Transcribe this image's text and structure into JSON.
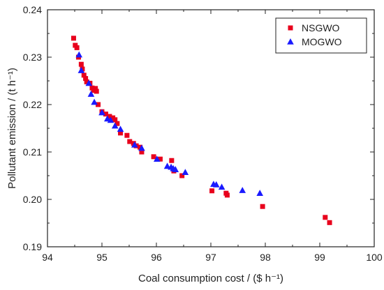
{
  "chart_data": {
    "type": "scatter",
    "xlabel": "Coal consumption cost / ($ h⁻¹)",
    "ylabel": "Pollutant emission / (t h⁻¹)",
    "xlim": [
      94,
      100
    ],
    "ylim": [
      0.19,
      0.24
    ],
    "x_ticks": [
      "94",
      "95",
      "96",
      "97",
      "98",
      "99",
      "100"
    ],
    "y_ticks": [
      "0.19",
      "0.20",
      "0.21",
      "0.22",
      "0.23",
      "0.24"
    ],
    "legend_position": "top-right",
    "series": [
      {
        "name": "NSGWO",
        "marker": "square",
        "color": "#e8001c",
        "points": [
          [
            94.48,
            0.234
          ],
          [
            94.51,
            0.2325
          ],
          [
            94.54,
            0.232
          ],
          [
            94.57,
            0.23
          ],
          [
            94.62,
            0.2285
          ],
          [
            94.64,
            0.2275
          ],
          [
            94.67,
            0.2262
          ],
          [
            94.7,
            0.2255
          ],
          [
            94.72,
            0.2248
          ],
          [
            94.78,
            0.2245
          ],
          [
            94.82,
            0.2235
          ],
          [
            94.85,
            0.223
          ],
          [
            94.88,
            0.2234
          ],
          [
            94.9,
            0.2228
          ],
          [
            94.93,
            0.22
          ],
          [
            95.0,
            0.2185
          ],
          [
            95.07,
            0.218
          ],
          [
            95.14,
            0.2175
          ],
          [
            95.2,
            0.2172
          ],
          [
            95.24,
            0.2168
          ],
          [
            95.28,
            0.216
          ],
          [
            95.34,
            0.214
          ],
          [
            95.46,
            0.2135
          ],
          [
            95.51,
            0.2122
          ],
          [
            95.58,
            0.2118
          ],
          [
            95.63,
            0.2113
          ],
          [
            95.7,
            0.211
          ],
          [
            95.73,
            0.21
          ],
          [
            95.95,
            0.209
          ],
          [
            96.07,
            0.2085
          ],
          [
            96.28,
            0.2082
          ],
          [
            96.32,
            0.206
          ],
          [
            96.47,
            0.205
          ],
          [
            97.02,
            0.2018
          ],
          [
            97.28,
            0.2013
          ],
          [
            97.3,
            0.2009
          ],
          [
            97.95,
            0.1985
          ],
          [
            99.1,
            0.1962
          ],
          [
            99.18,
            0.1951
          ]
        ]
      },
      {
        "name": "MOGWO",
        "marker": "triangle",
        "color": "#1a1aff",
        "points": [
          [
            94.58,
            0.2305
          ],
          [
            94.62,
            0.2272
          ],
          [
            94.76,
            0.2245
          ],
          [
            94.8,
            0.2222
          ],
          [
            94.86,
            0.2205
          ],
          [
            95.0,
            0.2183
          ],
          [
            95.1,
            0.217
          ],
          [
            95.16,
            0.2167
          ],
          [
            95.24,
            0.2155
          ],
          [
            95.34,
            0.2148
          ],
          [
            95.6,
            0.2115
          ],
          [
            95.73,
            0.2108
          ],
          [
            96.01,
            0.2085
          ],
          [
            96.2,
            0.207
          ],
          [
            96.27,
            0.2068
          ],
          [
            96.31,
            0.2065
          ],
          [
            96.35,
            0.2063
          ],
          [
            96.53,
            0.2057
          ],
          [
            97.05,
            0.2032
          ],
          [
            97.1,
            0.2031
          ],
          [
            97.2,
            0.2026
          ],
          [
            97.58,
            0.2019
          ],
          [
            97.9,
            0.2013
          ]
        ]
      }
    ]
  }
}
